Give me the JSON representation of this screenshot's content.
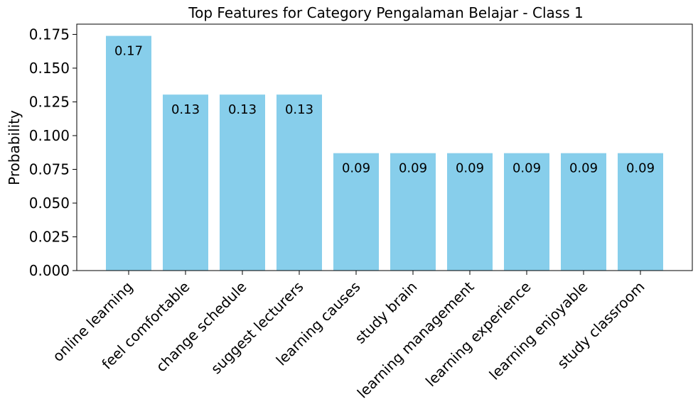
{
  "chart_data": {
    "type": "bar",
    "title": "Top Features for Category Pengalaman Belajar - Class 1",
    "xlabel": "",
    "ylabel": "Probability",
    "categories": [
      "online learning",
      "feel comfortable",
      "change schedule",
      "suggest lecturers",
      "learning causes",
      "study brain",
      "learning management",
      "learning experience",
      "learning enjoyable",
      "study classroom"
    ],
    "values": [
      0.1739,
      0.1304,
      0.1304,
      0.1304,
      0.087,
      0.087,
      0.087,
      0.087,
      0.087,
      0.087
    ],
    "data_labels": [
      "0.17",
      "0.13",
      "0.13",
      "0.13",
      "0.09",
      "0.09",
      "0.09",
      "0.09",
      "0.09",
      "0.09"
    ],
    "ylim": [
      0,
      0.1826
    ],
    "yticks": [
      0,
      0.025,
      0.05,
      0.075,
      0.1,
      0.125,
      0.15,
      0.175
    ],
    "ytick_labels": [
      "0.000",
      "0.025",
      "0.050",
      "0.075",
      "0.100",
      "0.125",
      "0.150",
      "0.175"
    ],
    "bar_color": "#87ceeb",
    "grid": false,
    "legend": "none"
  }
}
